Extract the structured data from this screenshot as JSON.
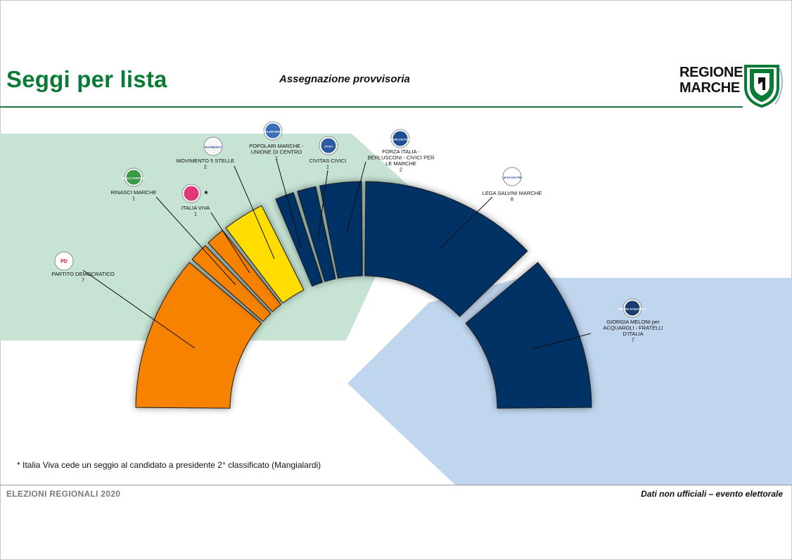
{
  "header": {
    "title": "Seggi per lista",
    "subtitle": "Assegnazione provvisoria",
    "logo_text_line1": "REGIONE",
    "logo_text_line2": "MARCHE"
  },
  "footnote": "* Italia Viva cede un seggio al candidato a presidente 2° classificato (Mangialardi)",
  "footer": {
    "left": "ELEZIONI REGIONALI 2020",
    "right": "Dati non ufficiali – evento elettorale"
  },
  "colors": {
    "brand_green": "#0a7a35",
    "left_coalition": "#f78200",
    "m5s": "#ffdd00",
    "right_coalition": "#003366",
    "left_band": "#c5e3d3",
    "right_band": "#c0d6ee"
  },
  "chart_data": {
    "type": "hemicycle",
    "total_seats": 30,
    "series": [
      {
        "name": "PARTITO DEMOCRATICO",
        "seats": 7,
        "group": "centre-left",
        "color": "#f78200",
        "label_lines": [
          "PARTITO DEMOCRATICO",
          "7"
        ]
      },
      {
        "name": "RINASCI MARCHE",
        "seats": 1,
        "group": "centre-left",
        "color": "#f78200",
        "label_lines": [
          "RINASCI MARCHE",
          "1"
        ]
      },
      {
        "name": "ITALIA VIVA",
        "seats": 1,
        "group": "centre-left",
        "color": "#f78200",
        "label_lines": [
          "ITALIA VIVA",
          "1"
        ],
        "marker": "*"
      },
      {
        "name": "MOVIMENTO 5 STELLE",
        "seats": 2,
        "group": "m5s",
        "color": "#ffdd00",
        "label_lines": [
          "MOVIMENTO 5 STELLE",
          "2"
        ]
      },
      {
        "name": "POPOLARI MARCHE - UNIONE DI CENTRO",
        "seats": 1,
        "group": "centre-right",
        "color": "#003366",
        "label_lines": [
          "POPOLARI MARCHE -",
          "UNIONE DI CENTRO",
          "1"
        ]
      },
      {
        "name": "CIVITAS CIVICI",
        "seats": 1,
        "group": "centre-right",
        "color": "#003366",
        "label_lines": [
          "CIVITAS CIVICI",
          "1"
        ]
      },
      {
        "name": "FORZA ITALIA - BERLUSCONI - CIVICI PER LE MARCHE",
        "seats": 2,
        "group": "centre-right",
        "color": "#003366",
        "label_lines": [
          "FORZA ITALIA -",
          "BERLUSCONI - CIVICI PER",
          "LE MARCHE",
          "2"
        ]
      },
      {
        "name": "LEGA SALVINI MARCHE",
        "seats": 8,
        "group": "centre-right",
        "color": "#003366",
        "label_lines": [
          "LEGA SALVINI MARCHE",
          "8"
        ]
      },
      {
        "name": "GIORGIA MELONI per ACQUAROLI - FRATELLI D'ITALIA",
        "seats": 7,
        "group": "centre-right",
        "color": "#003366",
        "label_lines": [
          "GIORGIA MELONI per",
          "ACQUAROLI - FRATELLI",
          "D'ITALIA",
          "7"
        ]
      }
    ],
    "party_logos": [
      {
        "party": "PARTITO DEMOCRATICO",
        "text": "PD",
        "icon": "pd-logo-icon"
      },
      {
        "party": "RINASCI MARCHE",
        "text": "Rinasci MARCHE",
        "icon": "rinasci-marche-logo-icon"
      },
      {
        "party": "ITALIA VIVA",
        "text": "",
        "icon": "italia-viva-logo-icon"
      },
      {
        "party": "MOVIMENTO 5 STELLE",
        "text": "MoVIMENTO",
        "icon": "m5s-logo-icon"
      },
      {
        "party": "POPOLARI MARCHE - UNIONE DI CENTRO",
        "text": "POPOLARI MARCHE",
        "icon": "popolari-marche-logo-icon"
      },
      {
        "party": "CIVITAS CIVICI",
        "text": "CIVICI",
        "icon": "civitas-civici-logo-icon"
      },
      {
        "party": "FORZA ITALIA - BERLUSCONI - CIVICI PER LE MARCHE",
        "text": "BERLUSCONI",
        "icon": "forza-italia-logo-icon"
      },
      {
        "party": "LEGA SALVINI MARCHE",
        "text": "LEGA SALVINI",
        "icon": "lega-logo-icon"
      },
      {
        "party": "GIORGIA MELONI per ACQUAROLI - FRATELLI D'ITALIA",
        "text": "MELONI ACQUAROLI",
        "icon": "fdi-logo-icon"
      }
    ]
  }
}
